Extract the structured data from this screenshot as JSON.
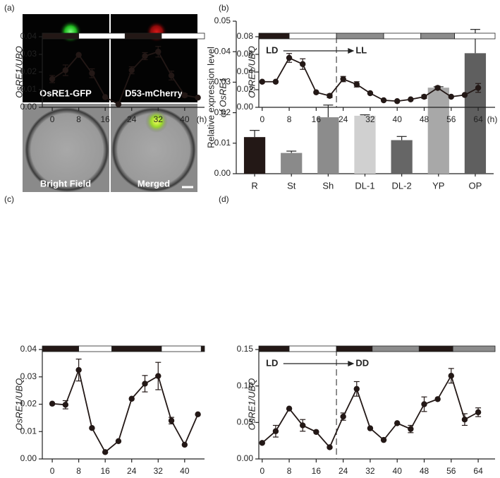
{
  "panel_labels": [
    "(a)",
    "(b)",
    "(c)",
    "(d)"
  ],
  "images": {
    "labels": [
      "OsRE1-GFP",
      "D53-mCherry",
      "Bright Field",
      "Merged"
    ]
  },
  "chart_data": [
    {
      "type": "bar",
      "ylabel": [
        "Relative expression level",
        "of OsRE1"
      ],
      "categories": [
        "R",
        "St",
        "Sh",
        "DL-1",
        "DL-2",
        "YP",
        "OP"
      ],
      "values": [
        0.012,
        0.0068,
        0.0185,
        0.019,
        0.011,
        0.0282,
        0.0395
      ],
      "errors": [
        0.0022,
        0.0006,
        0.004,
        0.0003,
        0.0012,
        0.0003,
        0.0078
      ],
      "colors": [
        "#231816",
        "#8a8a8a",
        "#8c8c8c",
        "#d0d0d0",
        "#666666",
        "#a8a8a8",
        "#5f5f5f"
      ],
      "ylim": [
        0,
        0.05
      ],
      "yticks": [
        {
          "value": 0,
          "label": "0.00"
        },
        0.01,
        0.02,
        0.03,
        0.04,
        0.05
      ]
    },
    {
      "type": "line",
      "ylabel": "OsRE1/UBQ",
      "xlabel": "(h)",
      "x": [
        0,
        4,
        8,
        12,
        16,
        20,
        24,
        28,
        32,
        36,
        40,
        44
      ],
      "values": [
        0.016,
        0.021,
        0.0297,
        0.0193,
        0.0058,
        0.0017,
        0.021,
        0.029,
        0.0315,
        0.018,
        0.0068,
        0.0055
      ],
      "errors": [
        0.002,
        0.003,
        0,
        0.0025,
        0,
        0,
        0.002,
        0.002,
        0.003,
        0.0025,
        0.001,
        0
      ],
      "xlim": [
        -3,
        46
      ],
      "xticks": [
        0,
        8,
        16,
        24,
        32,
        40
      ],
      "ylim": [
        0,
        0.04
      ],
      "yticks": [
        {
          "value": 0,
          "label": "0.00"
        },
        0.01,
        0.02,
        0.03,
        0.04
      ],
      "schedule": [
        {
          "from": -3,
          "to": 8,
          "color": "#231816"
        },
        {
          "from": 8,
          "to": 22,
          "color": "#ffffff"
        },
        {
          "from": 22,
          "to": 33,
          "color": "#231816"
        },
        {
          "from": 33,
          "to": 46,
          "color": "#ffffff"
        }
      ]
    },
    {
      "type": "line",
      "ylabel": "OsRE1/UBQ",
      "x": [
        0,
        4,
        8,
        12,
        16,
        20,
        24,
        28,
        32,
        36,
        40,
        44
      ],
      "values": [
        0.0202,
        0.0198,
        0.0325,
        0.0113,
        0.0025,
        0.0065,
        0.022,
        0.0275,
        0.0303,
        0.014,
        0.0052,
        0.0163
      ],
      "errors": [
        0,
        0.0015,
        0.004,
        0,
        0,
        0,
        0,
        0.003,
        0.005,
        0.0012,
        0,
        0
      ],
      "xlim": [
        -3,
        46
      ],
      "xticks": [
        0,
        8,
        16,
        24,
        32,
        40
      ],
      "ylim": [
        0,
        0.04
      ],
      "yticks": [
        {
          "value": 0,
          "label": "0.00"
        },
        0.01,
        0.02,
        0.03,
        0.04
      ],
      "schedule": [
        {
          "from": -3,
          "to": 8,
          "color": "#231816"
        },
        {
          "from": 8,
          "to": 18,
          "color": "#ffffff"
        },
        {
          "from": 18,
          "to": 33,
          "color": "#231816"
        },
        {
          "from": 33,
          "to": 45,
          "color": "#ffffff"
        },
        {
          "from": 45,
          "to": 46,
          "color": "#231816"
        }
      ]
    },
    {
      "type": "line",
      "ylabel": "OsRE1/UBQ",
      "xlabel": "(h)",
      "annotations": [
        "LD",
        "LL"
      ],
      "transition": 22,
      "x": [
        0,
        4,
        8,
        12,
        16,
        20,
        24,
        28,
        32,
        36,
        40,
        44,
        48,
        52,
        56,
        60,
        64
      ],
      "values": [
        0.029,
        0.029,
        0.056,
        0.049,
        0.017,
        0.013,
        0.032,
        0.026,
        0.016,
        0.008,
        0.007,
        0.009,
        0.012,
        0.022,
        0.012,
        0.014,
        0.022
      ],
      "errors": [
        0,
        0,
        0.005,
        0.006,
        0,
        0.002,
        0.003,
        0.003,
        0,
        0,
        0,
        0,
        0.002,
        0.002,
        0,
        0,
        0.005
      ],
      "xlim": [
        -1,
        69
      ],
      "xticks": [
        0,
        8,
        16,
        24,
        32,
        40,
        48,
        56,
        64
      ],
      "ylim": [
        0,
        0.08
      ],
      "yticks": [
        {
          "value": 0,
          "label": "0.00"
        },
        0.02,
        0.04,
        0.06,
        0.08
      ],
      "schedule": [
        {
          "from": -1,
          "to": 8,
          "color": "#231816"
        },
        {
          "from": 8,
          "to": 22,
          "color": "#ffffff"
        },
        {
          "from": 22,
          "to": 36,
          "color": "#8c8c8c"
        },
        {
          "from": 36,
          "to": 47,
          "color": "#ffffff"
        },
        {
          "from": 47,
          "to": 57,
          "color": "#8c8c8c"
        },
        {
          "from": 57,
          "to": 69,
          "color": "#ffffff"
        }
      ]
    },
    {
      "type": "line",
      "ylabel": "OsRE1/UBQ",
      "annotations": [
        "LD",
        "DD"
      ],
      "transition": 22,
      "x": [
        0,
        4,
        8,
        12,
        16,
        20,
        24,
        28,
        32,
        36,
        40,
        44,
        48,
        52,
        56,
        60,
        64
      ],
      "values": [
        0.022,
        0.038,
        0.069,
        0.046,
        0.037,
        0.016,
        0.058,
        0.096,
        0.042,
        0.026,
        0.049,
        0.041,
        0.075,
        0.082,
        0.114,
        0.054,
        0.064
      ],
      "errors": [
        0,
        0.008,
        0,
        0.008,
        0,
        0,
        0.005,
        0.01,
        0,
        0,
        0,
        0.005,
        0.01,
        0,
        0.01,
        0.008,
        0.006
      ],
      "xlim": [
        -1,
        69
      ],
      "xticks": [
        0,
        8,
        16,
        24,
        32,
        40,
        48,
        56,
        64
      ],
      "ylim": [
        0,
        0.15
      ],
      "yticks": [
        {
          "value": 0,
          "label": "0.00"
        },
        0.05,
        {
          "value": 0.1,
          "label": "0.10"
        },
        0.15
      ],
      "schedule": [
        {
          "from": -1,
          "to": 8,
          "color": "#231816"
        },
        {
          "from": 8,
          "to": 22,
          "color": "#ffffff"
        },
        {
          "from": 22,
          "to": 32.6,
          "color": "#231816"
        },
        {
          "from": 32.6,
          "to": 46.5,
          "color": "#8c8c8c"
        },
        {
          "from": 46.5,
          "to": 56.5,
          "color": "#231816"
        },
        {
          "from": 56.5,
          "to": 69,
          "color": "#8c8c8c"
        }
      ]
    }
  ]
}
